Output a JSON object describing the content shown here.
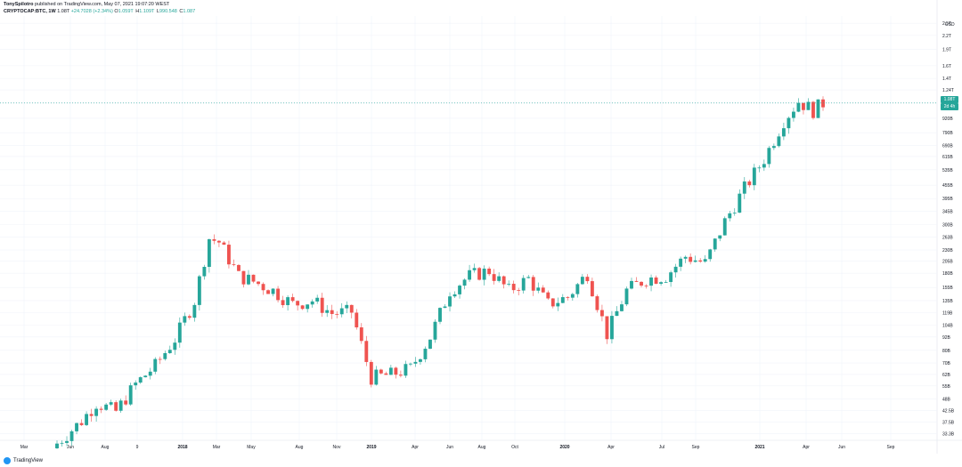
{
  "header": {
    "author": "TonySpilotro",
    "published": "published on TradingView.com, May 07, 2021 19:07:20 WEST"
  },
  "legend": {
    "symbol": "CRYPTOCAP:BTC, 1W",
    "last": "1.08T",
    "change": "+24.7028 (+2.34%)",
    "open_label": "O",
    "open": "1.059T",
    "high_label": "H",
    "high": "1.109T",
    "low_label": "L",
    "low": "990.548",
    "close_label": "C",
    "close": "1.087"
  },
  "price_axis": {
    "unit": "USD",
    "current_tag": "1.08T",
    "countdown_tag": "2d 4h"
  },
  "footer": {
    "brand": "TradingView"
  },
  "colors": {
    "up": "#26a69a",
    "down": "#ef5350",
    "grid": "#f0f3fa",
    "axis_text": "#131722"
  },
  "chart_data": {
    "type": "candlestick",
    "timeframe": "1W",
    "y_scale": "log",
    "y_ticks": [
      "2.5T",
      "2.2T",
      "1.9T",
      "1.6T",
      "1.4T",
      "1.24T",
      "1.08T",
      "920B",
      "790B",
      "690B",
      "615B",
      "535B",
      "455B",
      "395B",
      "345B",
      "300B",
      "263B",
      "230B",
      "205B",
      "180B",
      "155B",
      "135B",
      "119B",
      "104B",
      "92B",
      "80B",
      "70B",
      "62B",
      "55B",
      "48B",
      "42.5B",
      "37.5B",
      "33.3B"
    ],
    "y_ticks_display": [
      "2.5T",
      "2.2T",
      "1.9T",
      "1.6T",
      "1.4T",
      "1.24T",
      "",
      "920B",
      "790B",
      "690B",
      "615B",
      "535B",
      "455B",
      "395B",
      "345B",
      "300B",
      "263B",
      "230B",
      "205B",
      "180B",
      "155B",
      "135B",
      "119B",
      "104B",
      "92B",
      "80B",
      "70B",
      "62B",
      "55B",
      "48B",
      "42.5B",
      "37.5B",
      "33.3B"
    ],
    "x_ticks": [
      "Mar",
      "Jun",
      "Aug",
      "9",
      "2018",
      "Mar",
      "May",
      "Aug",
      "Nov",
      "2019",
      "Apr",
      "Jun",
      "Aug",
      "Oct",
      "2020",
      "Apr",
      "Jul",
      "Sep",
      "2021",
      "Apr",
      "Jun",
      "Sep"
    ],
    "current_price": "1.08T",
    "candles_anchor": [
      {
        "week": 0,
        "close": 30
      },
      {
        "week": 5,
        "close": 38
      },
      {
        "week": 8,
        "close": 46
      },
      {
        "week": 12,
        "close": 42
      },
      {
        "week": 16,
        "close": 56
      },
      {
        "week": 20,
        "close": 68
      },
      {
        "week": 24,
        "close": 90
      },
      {
        "week": 28,
        "close": 135
      },
      {
        "week": 31,
        "close": 260
      },
      {
        "week": 33,
        "close": 250
      },
      {
        "week": 37,
        "close": 175
      },
      {
        "week": 40,
        "close": 165
      },
      {
        "week": 44,
        "close": 150
      },
      {
        "week": 48,
        "close": 130
      },
      {
        "week": 52,
        "close": 135
      },
      {
        "week": 56,
        "close": 118
      },
      {
        "week": 60,
        "close": 120
      },
      {
        "week": 64,
        "close": 60
      },
      {
        "week": 68,
        "close": 62
      },
      {
        "week": 72,
        "close": 66
      },
      {
        "week": 76,
        "close": 92
      },
      {
        "week": 80,
        "close": 150
      },
      {
        "week": 84,
        "close": 175
      },
      {
        "week": 88,
        "close": 185
      },
      {
        "week": 92,
        "close": 150
      },
      {
        "week": 96,
        "close": 170
      },
      {
        "week": 100,
        "close": 130
      },
      {
        "week": 104,
        "close": 140
      },
      {
        "week": 108,
        "close": 180
      },
      {
        "week": 112,
        "close": 95
      },
      {
        "week": 116,
        "close": 150
      },
      {
        "week": 120,
        "close": 170
      },
      {
        "week": 124,
        "close": 175
      },
      {
        "week": 128,
        "close": 215
      },
      {
        "week": 132,
        "close": 200
      },
      {
        "week": 136,
        "close": 310
      },
      {
        "week": 140,
        "close": 440
      },
      {
        "week": 144,
        "close": 600
      },
      {
        "week": 148,
        "close": 900
      },
      {
        "week": 151,
        "close": 1100
      },
      {
        "week": 154,
        "close": 1000
      },
      {
        "week": 156,
        "close": 1080
      }
    ]
  }
}
